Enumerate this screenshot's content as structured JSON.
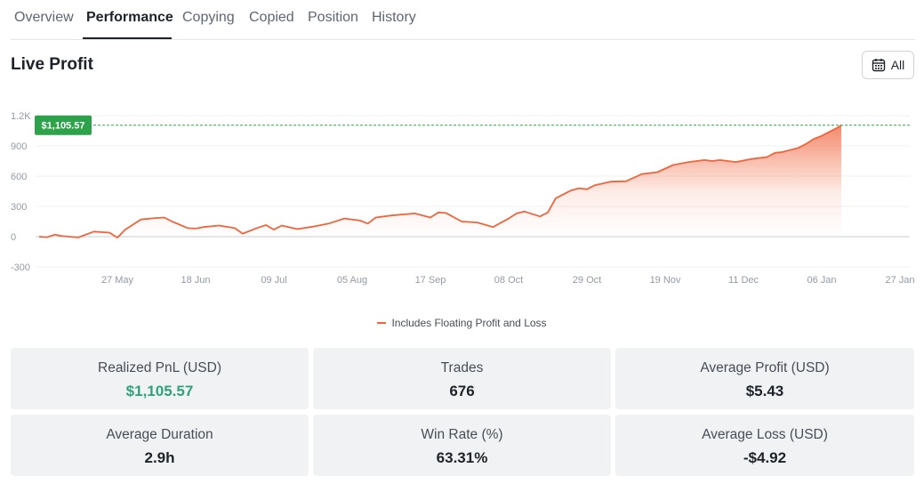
{
  "tabs": [
    {
      "label": "Overview",
      "active": false
    },
    {
      "label": "Performance",
      "active": true
    },
    {
      "label": "Copying",
      "active": false
    },
    {
      "label": "Copied",
      "active": false
    },
    {
      "label": "Position",
      "active": false
    },
    {
      "label": "History",
      "active": false
    }
  ],
  "section": {
    "title": "Live Profit",
    "range_button": "All",
    "range_icon": "calendar-icon"
  },
  "chart_data": {
    "type": "area",
    "title": "",
    "xlabel": "",
    "ylabel": "",
    "ylim": [
      -300,
      1200
    ],
    "y_ticks": [
      "1.2K",
      "900",
      "600",
      "300",
      "0",
      "-300"
    ],
    "x_ticks": [
      "27 May",
      "18 Jun",
      "09 Jul",
      "05 Aug",
      "17 Sep",
      "08 Oct",
      "29 Oct",
      "19 Nov",
      "11 Dec",
      "06 Jan",
      "27 Jan"
    ],
    "current_value_label": "$1,105.57",
    "current_value": 1105.57,
    "grid": true,
    "legend_position": "bottom",
    "series": [
      {
        "name": "Includes Floating Profit and Loss",
        "color": "#f0643c",
        "x_index": [
          0,
          0.1,
          0.2,
          0.3,
          0.5,
          0.7,
          0.9,
          1.0,
          1.1,
          1.3,
          1.5,
          1.6,
          1.7,
          1.9,
          2.0,
          2.1,
          2.3,
          2.5,
          2.6,
          2.8,
          2.9,
          3.0,
          3.1,
          3.3,
          3.5,
          3.7,
          3.9,
          4.1,
          4.2,
          4.3,
          4.5,
          4.8,
          5.0,
          5.1,
          5.2,
          5.4,
          5.6,
          5.8,
          6.0,
          6.1,
          6.2,
          6.4,
          6.5,
          6.6,
          6.8,
          6.9,
          7.0,
          7.1,
          7.3,
          7.5,
          7.7,
          7.9,
          8.1,
          8.3,
          8.5,
          8.6,
          8.7,
          8.9,
          9.1,
          9.3,
          9.4,
          9.5,
          9.7,
          9.8,
          9.9,
          10.0,
          10.1,
          10.2,
          10.25
        ],
        "y_values": [
          0,
          -5,
          20,
          5,
          -8,
          50,
          40,
          -10,
          70,
          170,
          185,
          190,
          150,
          85,
          80,
          95,
          110,
          85,
          30,
          90,
          115,
          70,
          110,
          75,
          100,
          130,
          180,
          160,
          130,
          190,
          210,
          230,
          190,
          240,
          235,
          150,
          140,
          95,
          180,
          230,
          250,
          200,
          240,
          380,
          460,
          480,
          470,
          510,
          545,
          550,
          620,
          640,
          710,
          740,
          760,
          750,
          760,
          740,
          770,
          790,
          830,
          840,
          880,
          920,
          970,
          1000,
          1040,
          1080,
          1105.57
        ]
      }
    ]
  },
  "stats": [
    {
      "label": "Realized PnL (USD)",
      "value": "$1,105.57",
      "positive": true
    },
    {
      "label": "Trades",
      "value": "676",
      "positive": false
    },
    {
      "label": "Average Profit (USD)",
      "value": "$5.43",
      "positive": false
    },
    {
      "label": "Average Duration",
      "value": "2.9h",
      "positive": false
    },
    {
      "label": "Win Rate (%)",
      "value": "63.31%",
      "positive": false
    },
    {
      "label": "Average Loss (USD)",
      "value": "-$4.92",
      "positive": false
    }
  ],
  "colors": {
    "accent": "#f0643c",
    "positive": "#2ea27a",
    "badge": "#2ea24a",
    "text": "#1e2329",
    "muted": "#5e6673"
  }
}
